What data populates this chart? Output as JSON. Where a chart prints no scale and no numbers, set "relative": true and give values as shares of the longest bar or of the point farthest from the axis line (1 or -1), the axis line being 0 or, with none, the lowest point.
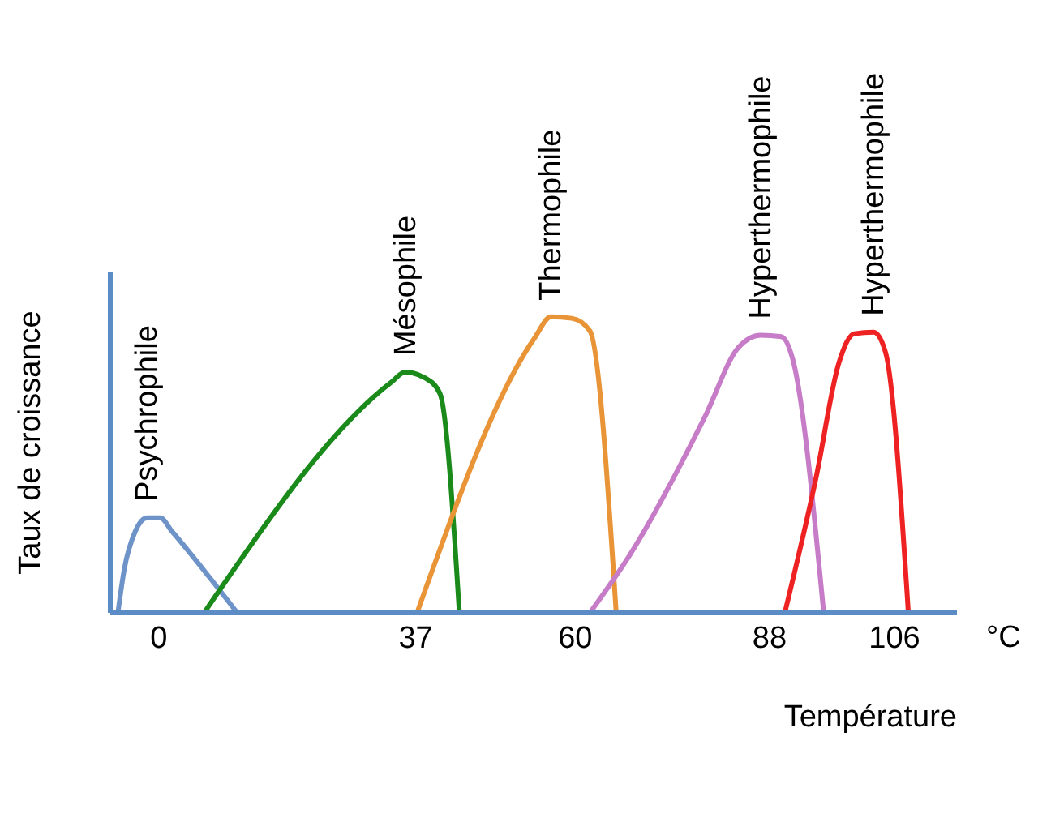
{
  "chart_data": {
    "type": "line",
    "relative": true,
    "xlabel": "Température",
    "ylabel": "Taux de croissance",
    "annotations": [
      "°C"
    ],
    "xlim": [
      -7,
      115
    ],
    "xticks": [
      0,
      37,
      60,
      88,
      106
    ],
    "marker": "none",
    "line_style": "solid",
    "series": [
      {
        "name": "Psychrophile",
        "color": "#6d93c8",
        "x": [
          -5.9,
          -5,
          -3.4,
          -1.7,
          0.2,
          1.9,
          11.3
        ],
        "values": [
          0,
          0.145,
          0.275,
          0.321,
          0.321,
          0.275,
          0
        ]
      },
      {
        "name": "Mésophile",
        "color": "#1a8a1a",
        "x": [
          6.5,
          33.4,
          35.5,
          38.4,
          40.5,
          43.3
        ],
        "values": [
          0,
          0.777,
          0.813,
          0.793,
          0.741,
          0
        ]
      },
      {
        "name": "Thermophile",
        "color": "#e89437",
        "x": [
          37.2,
          54.1,
          56.5,
          59.5,
          62.1,
          65.9
        ],
        "values": [
          0,
          0.927,
          1,
          0.995,
          0.953,
          0
        ]
      },
      {
        "name": "Hyperthermophile",
        "color": "#c77cc8",
        "x": [
          62.1,
          67.9,
          78.7,
          83.5,
          86.7,
          89.7,
          91.3,
          95.8
        ],
        "values": [
          0,
          0.197,
          0.663,
          0.896,
          0.938,
          0.933,
          0.86,
          0
        ]
      },
      {
        "name": "Hyperthermophile",
        "color": "#ee2222",
        "x": [
          90.2,
          94.7,
          98,
          100.2,
          103,
          104.7,
          108
        ],
        "values": [
          0,
          0.456,
          0.845,
          0.943,
          0.948,
          0.881,
          0
        ]
      }
    ]
  }
}
